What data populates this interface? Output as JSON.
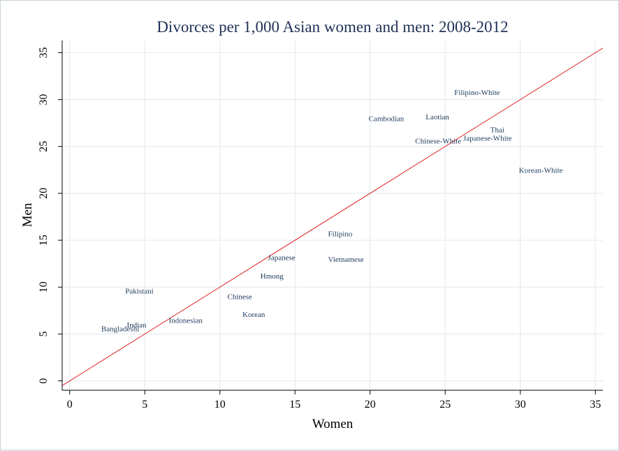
{
  "chart_data": {
    "type": "scatter",
    "title": "Divorces per 1,000 Asian women and men: 2008-2012",
    "xlabel": "Women",
    "ylabel": "Men",
    "xlim": [
      -0.5,
      35.5
    ],
    "ylim": [
      -1,
      36.3
    ],
    "xticks": [
      0,
      5,
      10,
      15,
      20,
      25,
      30,
      35
    ],
    "yticks": [
      0,
      5,
      10,
      15,
      20,
      25,
      30,
      35
    ],
    "grid": true,
    "reference_line": {
      "x": [
        -0.5,
        35.5
      ],
      "y": [
        -0.5,
        35.5
      ],
      "color": "#e02020"
    },
    "points": [
      {
        "label": "Filipino-White",
        "x": 25.6,
        "y": 30.8
      },
      {
        "label": "Cambodian",
        "x": 19.9,
        "y": 28.0
      },
      {
        "label": "Laotian",
        "x": 23.7,
        "y": 28.2
      },
      {
        "label": "Thai",
        "x": 28.0,
        "y": 26.8
      },
      {
        "label": "Japanese-White",
        "x": 26.2,
        "y": 25.9
      },
      {
        "label": "Chinese-White",
        "x": 23.0,
        "y": 25.6
      },
      {
        "label": "Korean-White",
        "x": 29.9,
        "y": 22.5
      },
      {
        "label": "Filipino",
        "x": 17.2,
        "y": 15.7
      },
      {
        "label": "Japanese",
        "x": 13.2,
        "y": 13.2
      },
      {
        "label": "Vietnamese",
        "x": 17.2,
        "y": 13.0
      },
      {
        "label": "Hmong",
        "x": 12.7,
        "y": 11.2
      },
      {
        "label": "Pakistani",
        "x": 3.7,
        "y": 9.6
      },
      {
        "label": "Chinese",
        "x": 10.5,
        "y": 9.0
      },
      {
        "label": "Korean",
        "x": 11.5,
        "y": 7.1
      },
      {
        "label": "Indonesian",
        "x": 6.6,
        "y": 6.5
      },
      {
        "label": "Indian",
        "x": 3.8,
        "y": 6.0
      },
      {
        "label": "Bangladeshi",
        "x": 2.1,
        "y": 5.6
      }
    ]
  }
}
